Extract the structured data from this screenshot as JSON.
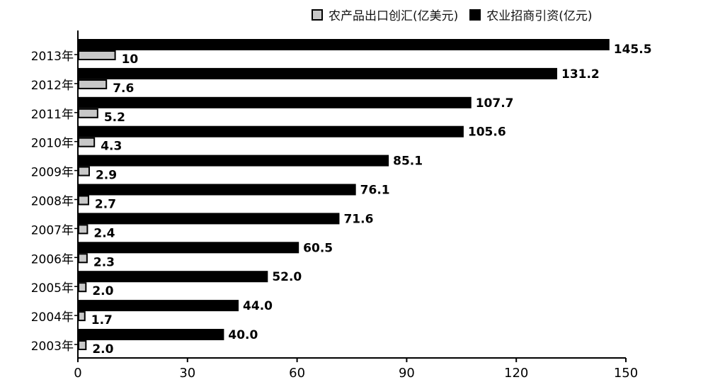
{
  "chart_data": {
    "type": "bar",
    "orientation": "horizontal",
    "categories": [
      "2013年",
      "2012年",
      "2011年",
      "2010年",
      "2009年",
      "2008年",
      "2007年",
      "2006年",
      "2005年",
      "2004年",
      "2003年"
    ],
    "series": [
      {
        "name": "农业招商引资(亿元)",
        "values": [
          145.5,
          131.2,
          107.7,
          105.6,
          85.1,
          76.1,
          71.6,
          60.5,
          52.0,
          44.0,
          40.0
        ],
        "labels": [
          "145.5",
          "131.2",
          "107.7",
          "105.6",
          "85.1",
          "76.1",
          "71.6",
          "60.5",
          "52.0",
          "44.0",
          "40.0"
        ],
        "color": "#000000"
      },
      {
        "name": "农产品出口创汇(亿美元)",
        "values": [
          10,
          7.6,
          5.2,
          4.3,
          2.9,
          2.7,
          2.4,
          2.3,
          2.0,
          1.7,
          2.0
        ],
        "labels": [
          "10",
          "7.6",
          "5.2",
          "4.3",
          "2.9",
          "2.7",
          "2.4",
          "2.3",
          "2.0",
          "1.7",
          "2.0"
        ],
        "color": "#c8c8c8"
      }
    ],
    "xlim": [
      0,
      150
    ],
    "xticks": [
      "0",
      "30",
      "60",
      "90",
      "120",
      "150"
    ],
    "legend_position": "top-right",
    "grid": false
  },
  "legend": {
    "item1": "农产品出口创汇(亿美元)",
    "item2": "农业招商引资(亿元)"
  }
}
